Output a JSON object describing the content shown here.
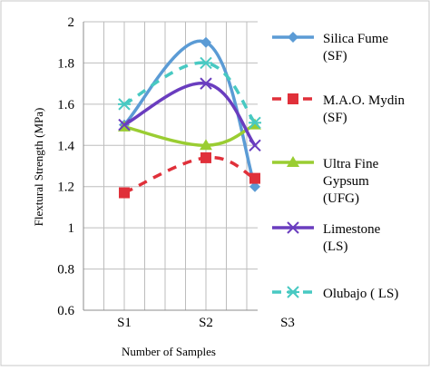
{
  "chart_data": {
    "type": "line",
    "title": "",
    "xlabel": "Number of Samples",
    "ylabel": "Flextural Strength (MPa)",
    "categories": [
      "S1",
      "S2",
      "S3"
    ],
    "ylim": [
      0.6,
      2
    ],
    "yticks": [
      "0.6",
      "0.8",
      "1",
      "1.2",
      "1.4",
      "1.6",
      "1.8",
      "2"
    ],
    "grid": true,
    "legend_position": "right",
    "series": [
      {
        "name": [
          "Silica Fume",
          "(SF)"
        ],
        "color": "#5B9BD5",
        "marker": "diamond",
        "dash": "solid",
        "x": [
          1,
          2,
          2.6
        ],
        "y": [
          1.5,
          1.9,
          1.2
        ]
      },
      {
        "name": [
          "M.A.O. Mydin",
          "(SF)"
        ],
        "color": "#E0303A",
        "marker": "square",
        "dash": "dashed",
        "x": [
          1,
          2,
          2.6
        ],
        "y": [
          1.17,
          1.34,
          1.24
        ]
      },
      {
        "name": [
          "Ultra Fine",
          "Gypsum",
          "(UFG)"
        ],
        "color": "#9ACD32",
        "marker": "triangle",
        "dash": "solid",
        "x": [
          1,
          2,
          2.6
        ],
        "y": [
          1.49,
          1.4,
          1.5
        ]
      },
      {
        "name": [
          "Limestone",
          "(LS)"
        ],
        "color": "#6A3DBF",
        "marker": "x",
        "dash": "solid",
        "x": [
          1,
          2,
          2.6
        ],
        "y": [
          1.5,
          1.7,
          1.4
        ]
      },
      {
        "name": [
          "Olubajo ( LS)"
        ],
        "color": "#48C9C2",
        "marker": "asterisk",
        "dash": "dashed",
        "x": [
          1,
          2,
          2.6
        ],
        "y": [
          1.6,
          1.8,
          1.51
        ]
      }
    ]
  }
}
